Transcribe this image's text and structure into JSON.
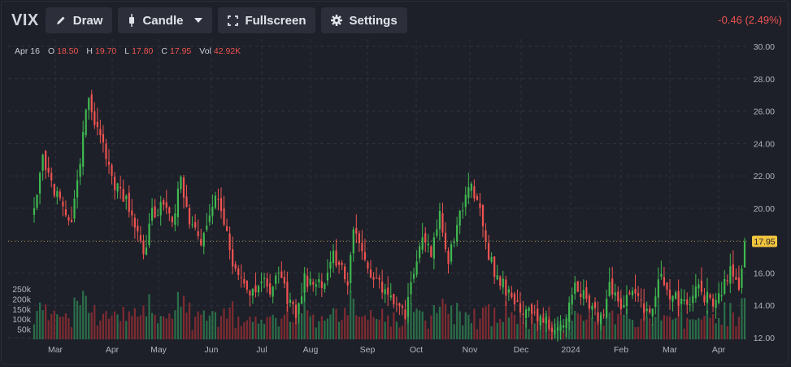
{
  "toolbar": {
    "symbol": "VIX",
    "draw_label": "Draw",
    "candle_label": "Candle",
    "fullscreen_label": "Fullscreen",
    "settings_label": "Settings"
  },
  "header": {
    "change": "-0.46 (2.49%)"
  },
  "legend": {
    "date": "Apr 16",
    "o_label": "O",
    "o_value": "18.50",
    "h_label": "H",
    "h_value": "19.70",
    "l_label": "L",
    "l_value": "17.80",
    "c_label": "C",
    "c_value": "17.95",
    "vol_label": "Vol",
    "vol_value": "42.92K"
  },
  "colors": {
    "up": "#26a69a",
    "down": "#ef5350",
    "last_price_bg": "#f0c43f"
  },
  "chart_data": {
    "type": "candlestick",
    "y_axis": {
      "ticks": [
        12,
        14,
        16,
        18,
        20,
        22,
        24,
        26,
        28,
        30
      ],
      "tick_labels": [
        "12.00",
        "14.00",
        "16.00",
        "18.00",
        "20.00",
        "22.00",
        "24.00",
        "26.00",
        "28.00",
        "30.00"
      ],
      "range": [
        12,
        30
      ]
    },
    "volume_axis": {
      "ticks": [
        50000,
        100000,
        150000,
        200000,
        250000
      ],
      "tick_labels": [
        "50k",
        "100k",
        "150k",
        "200k",
        "250k"
      ]
    },
    "x_axis": {
      "tick_labels": [
        "Mar",
        "Apr",
        "May",
        "Jun",
        "Jul",
        "Aug",
        "Sep",
        "Oct",
        "Nov",
        "Dec",
        "2024",
        "Feb",
        "Mar",
        "Apr"
      ]
    },
    "last_price": 17.95,
    "last_price_label": "17.95",
    "grid": true,
    "anchors": [
      [
        0,
        20.3
      ],
      [
        3,
        22.9
      ],
      [
        6,
        21.5
      ],
      [
        10,
        20.0
      ],
      [
        13,
        19.2
      ],
      [
        17,
        24.5
      ],
      [
        19,
        27.0
      ],
      [
        21,
        25.5
      ],
      [
        24,
        23.8
      ],
      [
        28,
        21.5
      ],
      [
        32,
        20.6
      ],
      [
        36,
        18.2
      ],
      [
        38,
        17.0
      ],
      [
        41,
        19.6
      ],
      [
        45,
        20.2
      ],
      [
        48,
        19.4
      ],
      [
        51,
        21.5
      ],
      [
        54,
        19.2
      ],
      [
        58,
        18.0
      ],
      [
        61,
        20.0
      ],
      [
        63,
        20.9
      ],
      [
        67,
        18.5
      ],
      [
        70,
        16.0
      ],
      [
        73,
        15.4
      ],
      [
        76,
        14.6
      ],
      [
        79,
        15.9
      ],
      [
        82,
        15.1
      ],
      [
        85,
        16.2
      ],
      [
        88,
        14.5
      ],
      [
        91,
        13.5
      ],
      [
        94,
        15.7
      ],
      [
        97,
        15.2
      ],
      [
        101,
        15.4
      ],
      [
        104,
        17.0
      ],
      [
        107,
        16.3
      ],
      [
        109,
        15.0
      ],
      [
        111,
        18.5
      ],
      [
        114,
        17.5
      ],
      [
        117,
        16.0
      ],
      [
        120,
        15.3
      ],
      [
        123,
        14.6
      ],
      [
        126,
        14.0
      ],
      [
        129,
        13.5
      ],
      [
        132,
        16.0
      ],
      [
        135,
        18.6
      ],
      [
        138,
        17.1
      ],
      [
        141,
        19.5
      ],
      [
        144,
        16.8
      ],
      [
        147,
        19.0
      ],
      [
        149,
        20.2
      ],
      [
        152,
        21.3
      ],
      [
        155,
        19.8
      ],
      [
        158,
        17.0
      ],
      [
        161,
        15.7
      ],
      [
        164,
        15.0
      ],
      [
        167,
        14.3
      ],
      [
        170,
        13.8
      ],
      [
        173,
        13.5
      ],
      [
        176,
        13.2
      ],
      [
        179,
        12.7
      ],
      [
        182,
        12.4
      ],
      [
        185,
        13.0
      ],
      [
        188,
        15.6
      ],
      [
        191,
        14.5
      ],
      [
        194,
        14.0
      ],
      [
        197,
        13.0
      ],
      [
        200,
        15.2
      ],
      [
        203,
        14.0
      ],
      [
        206,
        14.5
      ],
      [
        209,
        15.0
      ],
      [
        212,
        13.6
      ],
      [
        215,
        14.1
      ],
      [
        218,
        15.8
      ],
      [
        221,
        14.8
      ],
      [
        224,
        14.2
      ],
      [
        227,
        14.0
      ],
      [
        230,
        15.0
      ],
      [
        233,
        14.6
      ],
      [
        236,
        14.0
      ],
      [
        239,
        15.0
      ],
      [
        242,
        16.3
      ],
      [
        245,
        15.2
      ],
      [
        247,
        18.0
      ]
    ]
  }
}
